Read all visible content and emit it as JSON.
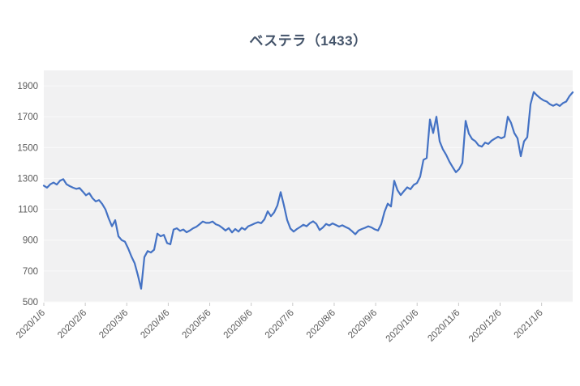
{
  "title": "ベステラ（1433）",
  "chart_data": {
    "type": "line",
    "title": "ベステラ（1433）",
    "legend": "none",
    "grid": true,
    "x_tick_labels": [
      "2020/1/6",
      "2020/2/6",
      "2020/3/6",
      "2020/4/6",
      "2020/5/6",
      "2020/6/6",
      "2020/7/6",
      "2020/8/6",
      "2020/9/6",
      "2020/10/6",
      "2020/11/6",
      "2020/12/6",
      "2021/1/6"
    ],
    "y_tick_labels": [
      500,
      700,
      900,
      1100,
      1300,
      1500,
      1700,
      1900
    ],
    "ylim": [
      500,
      2000
    ],
    "series": [
      {
        "values": [
          1253,
          1240,
          1262,
          1273,
          1260,
          1285,
          1295,
          1262,
          1250,
          1240,
          1232,
          1238,
          1215,
          1190,
          1205,
          1172,
          1151,
          1160,
          1134,
          1099,
          1040,
          990,
          1029,
          925,
          900,
          890,
          846,
          794,
          750,
          672,
          585,
          790,
          829,
          820,
          838,
          942,
          925,
          934,
          881,
          873,
          969,
          977,
          960,
          969,
          951,
          962,
          977,
          986,
          1003,
          1021,
          1012,
          1012,
          1021,
          1003,
          995,
          980,
          962,
          978,
          950,
          972,
          955,
          980,
          968,
          990,
          998,
          1008,
          1016,
          1010,
          1035,
          1087,
          1055,
          1080,
          1125,
          1211,
          1125,
          1030,
          975,
          955,
          972,
          985,
          1000,
          990,
          1010,
          1022,
          1005,
          965,
          982,
          1005,
          995,
          1008,
          998,
          988,
          996,
          985,
          975,
          958,
          938,
          962,
          972,
          980,
          990,
          982,
          970,
          962,
          1004,
          1083,
          1136,
          1118,
          1285,
          1224,
          1192,
          1218,
          1242,
          1230,
          1258,
          1270,
          1312,
          1420,
          1432,
          1682,
          1594,
          1700,
          1540,
          1488,
          1453,
          1409,
          1373,
          1340,
          1360,
          1400,
          1673,
          1590,
          1555,
          1541,
          1514,
          1506,
          1532,
          1523,
          1545,
          1558,
          1570,
          1560,
          1570,
          1700,
          1660,
          1594,
          1560,
          1444,
          1540,
          1567,
          1780,
          1860,
          1838,
          1820,
          1806,
          1798,
          1780,
          1771,
          1782,
          1770,
          1788,
          1798,
          1833,
          1858
        ]
      }
    ],
    "colors": {
      "line": "#4472C4",
      "plot_bg": "#F1F1F2",
      "grid": "#FAFAFA",
      "tick": "#C9C9C9",
      "axis_text": "#595959",
      "title_text": "#44546A"
    }
  }
}
